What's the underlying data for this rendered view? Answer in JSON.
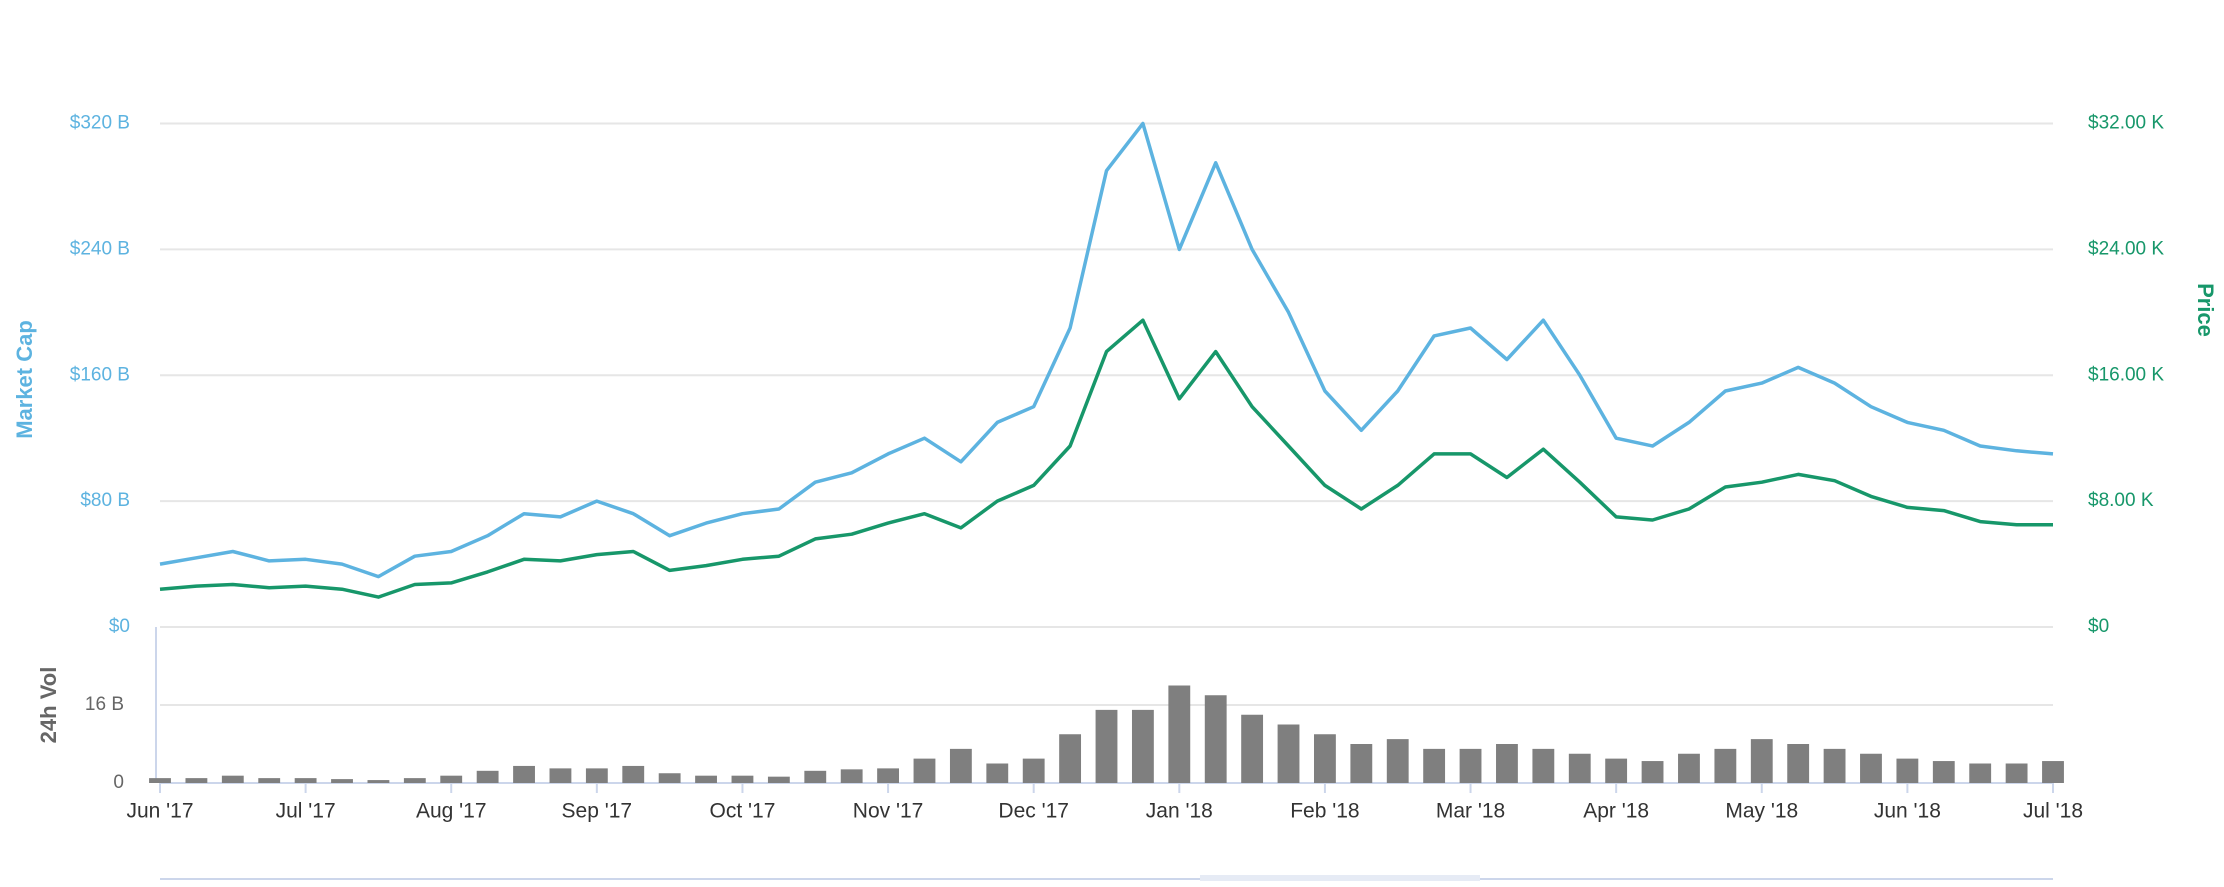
{
  "chart_data": {
    "type": "line",
    "categories": [
      "Jun '17",
      null,
      null,
      null,
      "Jul '17",
      null,
      null,
      null,
      "Aug '17",
      null,
      null,
      null,
      "Sep '17",
      null,
      null,
      null,
      "Oct '17",
      null,
      null,
      null,
      "Nov '17",
      null,
      null,
      null,
      "Dec '17",
      null,
      null,
      null,
      "Jan '18",
      null,
      null,
      null,
      "Feb '18",
      null,
      null,
      null,
      "Mar '18",
      null,
      null,
      null,
      "Apr '18",
      null,
      null,
      null,
      "May '18",
      null,
      null,
      null,
      "Jun '18",
      null,
      null,
      null,
      "Jul '18"
    ],
    "series": [
      {
        "name": "Market Cap",
        "color": "#5db3e0",
        "values": [
          40,
          44,
          48,
          42,
          43,
          40,
          32,
          45,
          48,
          58,
          72,
          70,
          80,
          72,
          58,
          66,
          72,
          75,
          92,
          98,
          110,
          120,
          105,
          130,
          140,
          190,
          290,
          320,
          240,
          295,
          240,
          200,
          150,
          125,
          150,
          185,
          190,
          170,
          195,
          160,
          120,
          115,
          130,
          150,
          155,
          165,
          155,
          140,
          130,
          125,
          115,
          112,
          110
        ]
      },
      {
        "name": "Price",
        "color": "#17976a",
        "axis": "y2",
        "values": [
          2400,
          2600,
          2700,
          2500,
          2600,
          2400,
          1900,
          2700,
          2800,
          3500,
          4300,
          4200,
          4600,
          4800,
          3600,
          3900,
          4300,
          4500,
          5600,
          5900,
          6600,
          7200,
          6300,
          8000,
          9000,
          11500,
          17500,
          19500,
          14500,
          17500,
          14000,
          11500,
          9000,
          7500,
          9000,
          11000,
          11000,
          9500,
          11300,
          9200,
          7000,
          6800,
          7500,
          8900,
          9200,
          9700,
          9300,
          8300,
          7600,
          7400,
          6700,
          6500,
          6500
        ]
      }
    ],
    "ylim": [
      0,
      340
    ],
    "yticks": [
      {
        "value": 0,
        "label": "$0"
      },
      {
        "value": 80,
        "label": "$80 B"
      },
      {
        "value": 160,
        "label": "$160 B"
      },
      {
        "value": 240,
        "label": "$240 B"
      },
      {
        "value": 320,
        "label": "$320 B"
      }
    ],
    "y2lim": [
      0,
      34000
    ],
    "y2ticks": [
      {
        "value": 0,
        "label": "$0"
      },
      {
        "value": 8000,
        "label": "$8.00 K"
      },
      {
        "value": 16000,
        "label": "$16.00 K"
      },
      {
        "value": 24000,
        "label": "$24.00 K"
      },
      {
        "value": 32000,
        "label": "$32.00 K"
      }
    ],
    "grid": true,
    "volume": {
      "type": "bar",
      "label": "24h Vol",
      "color": "#7f7f7f",
      "values": [
        1,
        1,
        1.5,
        1,
        1,
        0.8,
        0.6,
        1,
        1.5,
        2.5,
        3.5,
        3,
        3,
        3.5,
        2,
        1.5,
        1.5,
        1.3,
        2.5,
        2.8,
        3,
        5,
        7,
        4,
        5,
        10,
        15,
        15,
        20,
        18,
        14,
        12,
        10,
        8,
        9,
        7,
        7,
        8,
        7,
        6,
        5,
        4.5,
        6,
        7,
        9,
        8,
        7,
        6,
        5,
        4.5,
        4,
        4,
        4.5
      ],
      "ylim": [
        0,
        32
      ],
      "yticks": [
        0,
        {
          "value": 16,
          "label": "16 B"
        }
      ]
    }
  }
}
